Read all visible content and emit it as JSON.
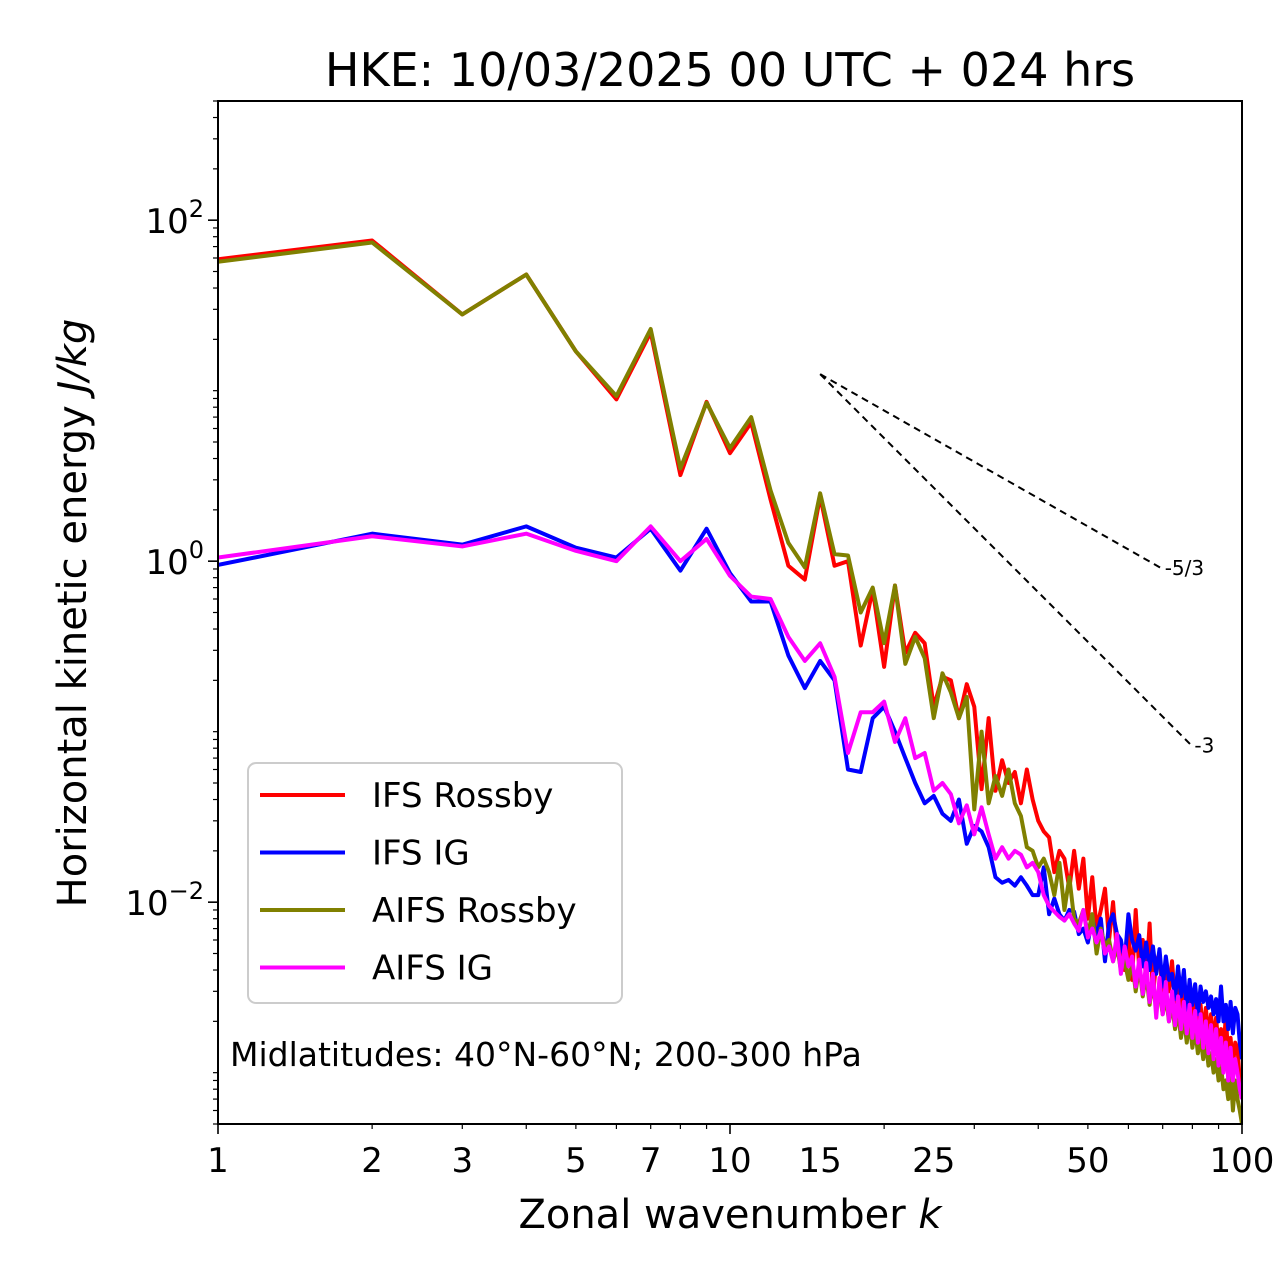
{
  "chart_data": {
    "type": "line",
    "title": "HKE: 10/03/2025 00 UTC + 024 hrs",
    "xlabel": "Zonal wavenumber",
    "xlabel_var": "k",
    "ylabel": "Horizontal kinetic energy",
    "ylabel_unit": "J/kg",
    "xscale": "log",
    "yscale": "log",
    "xlim": [
      1,
      100
    ],
    "ylim": [
      0.0005,
      500
    ],
    "xticks": [
      1,
      2,
      3,
      5,
      7,
      10,
      15,
      25,
      50,
      100
    ],
    "xtick_labels": [
      "1",
      "2",
      "3",
      "5",
      "7",
      "10",
      "15",
      "25",
      "50",
      "100"
    ],
    "yticks": [
      {
        "value": 100,
        "base": "10",
        "exp": "2"
      },
      {
        "value": 1,
        "base": "10",
        "exp": "0"
      },
      {
        "value": 0.01,
        "base": "10",
        "exp": "−2"
      }
    ],
    "annotation": "Midlatitudes: 40°N-60°N; 200-300 hPa",
    "legend_position": "lower-left",
    "series": [
      {
        "name": "IFS Rossby",
        "color": "#ff0000",
        "values": [
          59,
          76,
          28,
          48,
          17,
          8.9,
          22,
          3.2,
          8.6,
          4.3,
          6.5,
          2.3,
          0.94,
          0.78,
          2.4,
          0.94,
          1.0,
          0.32,
          0.68,
          0.24,
          0.72,
          0.29,
          0.38,
          0.33,
          0.14,
          0.21,
          0.2,
          0.12,
          0.19,
          0.14,
          0.046,
          0.12,
          0.045,
          0.068,
          0.05,
          0.058,
          0.038,
          0.06,
          0.04,
          0.03,
          0.026,
          0.024,
          0.015,
          0.02,
          0.018,
          0.012,
          0.02,
          0.012,
          0.018,
          0.008,
          0.014,
          0.007,
          0.009,
          0.012,
          0.006,
          0.01,
          0.005,
          0.0055,
          0.004,
          0.0065,
          0.0035,
          0.009,
          0.004,
          0.006,
          0.0035,
          0.0075,
          0.0028,
          0.0045,
          0.005,
          0.0028,
          0.004,
          0.003,
          0.0045,
          0.0026,
          0.0036,
          0.0022,
          0.0032,
          0.0023,
          0.0028,
          0.0019,
          0.0027,
          0.0018,
          0.0025,
          0.0017,
          0.0024,
          0.0016,
          0.0022,
          0.0015,
          0.0021,
          0.0014,
          0.0018,
          0.0013,
          0.0022,
          0.0012,
          0.0016,
          0.0011,
          0.0015,
          0.0014,
          0.0009,
          0.0008
        ]
      },
      {
        "name": "IFS IG",
        "color": "#0000ff",
        "values": [
          0.95,
          1.45,
          1.25,
          1.6,
          1.2,
          1.05,
          1.55,
          0.88,
          1.55,
          0.85,
          0.58,
          0.58,
          0.28,
          0.18,
          0.26,
          0.2,
          0.06,
          0.058,
          0.12,
          0.14,
          0.1,
          0.07,
          0.05,
          0.038,
          0.042,
          0.033,
          0.03,
          0.04,
          0.022,
          0.028,
          0.026,
          0.021,
          0.014,
          0.013,
          0.0135,
          0.0125,
          0.014,
          0.0125,
          0.011,
          0.011,
          0.016,
          0.0085,
          0.0105,
          0.0085,
          0.0078,
          0.009,
          0.0088,
          0.0065,
          0.007,
          0.0058,
          0.008,
          0.0064,
          0.008,
          0.0045,
          0.0075,
          0.0085,
          0.0065,
          0.006,
          0.0045,
          0.0085,
          0.006,
          0.0052,
          0.0064,
          0.0042,
          0.0058,
          0.004,
          0.0055,
          0.0038,
          0.0053,
          0.0032,
          0.0048,
          0.0035,
          0.0038,
          0.0027,
          0.0042,
          0.0028,
          0.004,
          0.0023,
          0.0035,
          0.0025,
          0.0033,
          0.0022,
          0.0032,
          0.0026,
          0.003,
          0.0024,
          0.0028,
          0.0022,
          0.0027,
          0.002,
          0.0032,
          0.002,
          0.0025,
          0.0018,
          0.0026,
          0.0017,
          0.0024,
          0.0022,
          0.0015,
          0.0012
        ]
      },
      {
        "name": "AIFS Rossby",
        "color": "#808000",
        "values": [
          57,
          74,
          28,
          48,
          17,
          9.3,
          23,
          3.5,
          8.5,
          4.6,
          7.0,
          2.6,
          1.28,
          0.92,
          2.5,
          1.1,
          1.08,
          0.5,
          0.7,
          0.33,
          0.72,
          0.25,
          0.36,
          0.27,
          0.12,
          0.22,
          0.17,
          0.12,
          0.16,
          0.035,
          0.1,
          0.038,
          0.055,
          0.042,
          0.06,
          0.038,
          0.032,
          0.021,
          0.02,
          0.016,
          0.018,
          0.015,
          0.011,
          0.017,
          0.009,
          0.014,
          0.008,
          0.0075,
          0.009,
          0.0065,
          0.0085,
          0.005,
          0.007,
          0.0055,
          0.006,
          0.0045,
          0.0055,
          0.004,
          0.0045,
          0.0035,
          0.0045,
          0.003,
          0.0042,
          0.0028,
          0.0038,
          0.0025,
          0.0035,
          0.0024,
          0.003,
          0.0022,
          0.0028,
          0.002,
          0.0025,
          0.0018,
          0.0023,
          0.0016,
          0.0021,
          0.0015,
          0.002,
          0.0014,
          0.0018,
          0.0013,
          0.0016,
          0.0012,
          0.0015,
          0.0011,
          0.0013,
          0.001,
          0.0012,
          0.0009,
          0.0011,
          0.0008,
          0.0009,
          0.0007,
          0.001,
          0.0006,
          0.0009,
          0.0007,
          0.0006,
          0.0005
        ]
      },
      {
        "name": "AIFS IG",
        "color": "#ff00ff",
        "values": [
          1.05,
          1.4,
          1.22,
          1.45,
          1.15,
          1.0,
          1.6,
          1.0,
          1.35,
          0.82,
          0.62,
          0.6,
          0.36,
          0.26,
          0.33,
          0.21,
          0.075,
          0.13,
          0.13,
          0.15,
          0.087,
          0.12,
          0.07,
          0.075,
          0.045,
          0.05,
          0.043,
          0.029,
          0.037,
          0.025,
          0.036,
          0.025,
          0.018,
          0.021,
          0.018,
          0.02,
          0.019,
          0.016,
          0.017,
          0.015,
          0.011,
          0.0095,
          0.0088,
          0.0082,
          0.0078,
          0.0085,
          0.0075,
          0.0068,
          0.009,
          0.0062,
          0.007,
          0.0058,
          0.0068,
          0.005,
          0.0055,
          0.0045,
          0.0065,
          0.0038,
          0.0055,
          0.0042,
          0.0048,
          0.0032,
          0.0046,
          0.0029,
          0.0044,
          0.0026,
          0.0038,
          0.0021,
          0.0036,
          0.0022,
          0.0034,
          0.002,
          0.003,
          0.0019,
          0.0028,
          0.0018,
          0.0026,
          0.0017,
          0.0025,
          0.0016,
          0.0023,
          0.0015,
          0.0022,
          0.0014,
          0.002,
          0.0013,
          0.0019,
          0.0012,
          0.0018,
          0.0011,
          0.0016,
          0.001,
          0.0015,
          0.0009,
          0.0014,
          0.0009,
          0.0012,
          0.001,
          0.0008,
          0.0007
        ]
      }
    ],
    "reference_slopes": [
      {
        "label": "-5/3",
        "slope": -1.6667,
        "x": [
          15,
          70
        ],
        "y": [
          12.5,
          0.9
        ]
      },
      {
        "label": "-3",
        "slope": -3,
        "x": [
          15,
          80
        ],
        "y": [
          12.5,
          0.082
        ]
      }
    ]
  }
}
